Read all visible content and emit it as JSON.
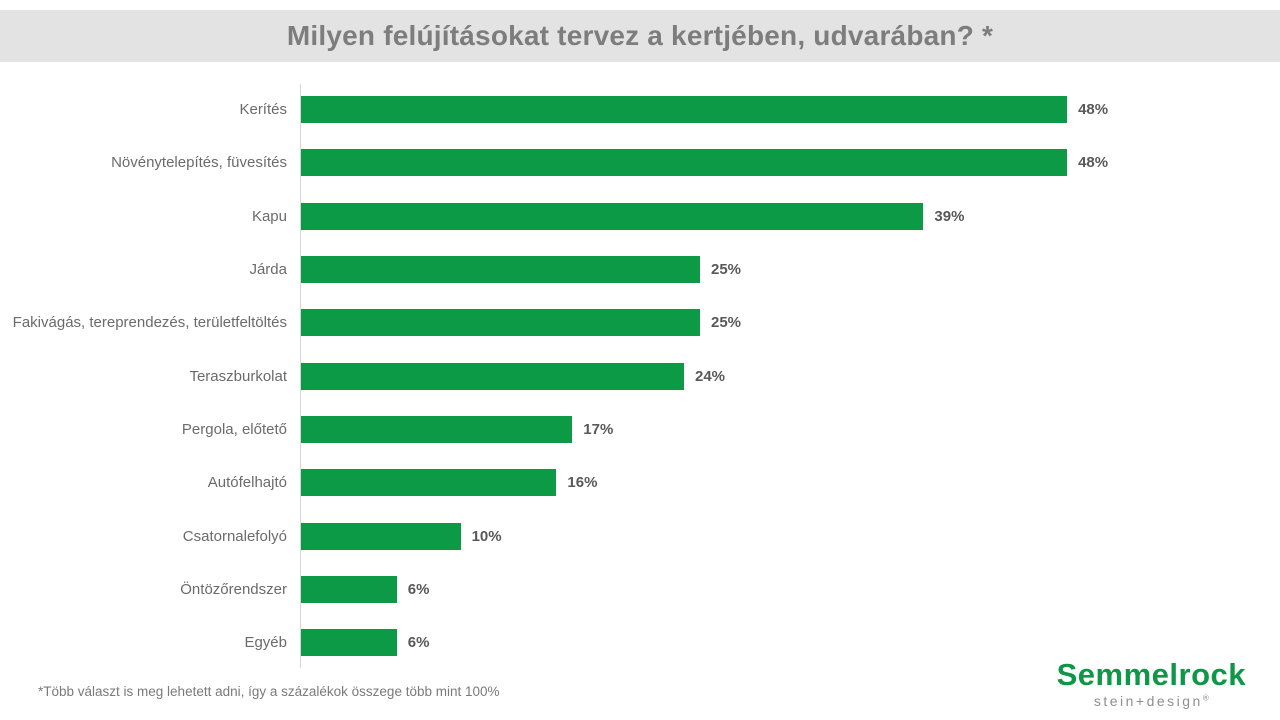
{
  "header": {
    "title": "Milyen felújításokat tervez a kertjében, udvarában? *"
  },
  "footnote": "*Több választ is meg lehetett adni, így a százalékok összege több mint 100%",
  "logo": {
    "wordmark": "Semmelrock",
    "tagline": "stein+design",
    "registered_mark": "®"
  },
  "colors": {
    "band_bg": "#e3e3e3",
    "title_text": "#7d7d7d",
    "category_text": "#6b6b6b",
    "value_text": "#595959",
    "bar_green": "#0c9a47",
    "axis_line": "#d6d6d6",
    "logo_green": "#0f9646",
    "tagline_gray": "#8f8f8f"
  },
  "chart_data": {
    "type": "bar",
    "orientation": "horizontal",
    "title": "Milyen felújításokat tervez a kertjében, udvarában? *",
    "xlabel": "",
    "ylabel": "",
    "xlim": [
      0,
      60
    ],
    "grid": false,
    "legend": false,
    "unit": "%",
    "categories": [
      "Kerítés",
      "Növénytelepítés, füvesítés",
      "Kapu",
      "Járda",
      "Fakivágás, tereprendezés, területfeltöltés",
      "Teraszburkolat",
      "Pergola, előtető",
      "Autófelhajtó",
      "Csatornalefolyó",
      "Öntözőrendszer",
      "Egyéb"
    ],
    "values": [
      48,
      48,
      39,
      25,
      25,
      24,
      17,
      16,
      10,
      6,
      6
    ],
    "value_labels": [
      "48%",
      "48%",
      "39%",
      "25%",
      "25%",
      "24%",
      "17%",
      "16%",
      "10%",
      "6%",
      "6%"
    ],
    "annotation": "*Több választ is meg lehetett adni, így a százalékok összege több mint 100%"
  }
}
